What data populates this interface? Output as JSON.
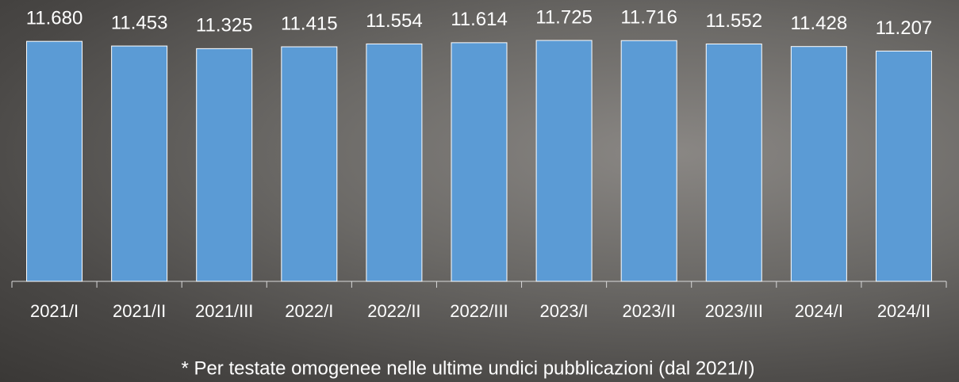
{
  "chart_data": {
    "type": "bar",
    "categories": [
      "2021/I",
      "2021/II",
      "2021/III",
      "2022/I",
      "2022/II",
      "2022/III",
      "2023/I",
      "2023/II",
      "2023/III",
      "2024/I",
      "2024/II"
    ],
    "values": [
      11680,
      11453,
      11325,
      11415,
      11554,
      11614,
      11725,
      11716,
      11552,
      11428,
      11207
    ],
    "value_labels": [
      "11.680",
      "11.453",
      "11.325",
      "11.415",
      "11.554",
      "11.614",
      "11.725",
      "11.716",
      "11.552",
      "11.428",
      "11.207"
    ],
    "color": "#5b9bd5",
    "note": "* Per testate omogenee nelle ultime undici pubblicazioni (dal 2021/I)"
  }
}
